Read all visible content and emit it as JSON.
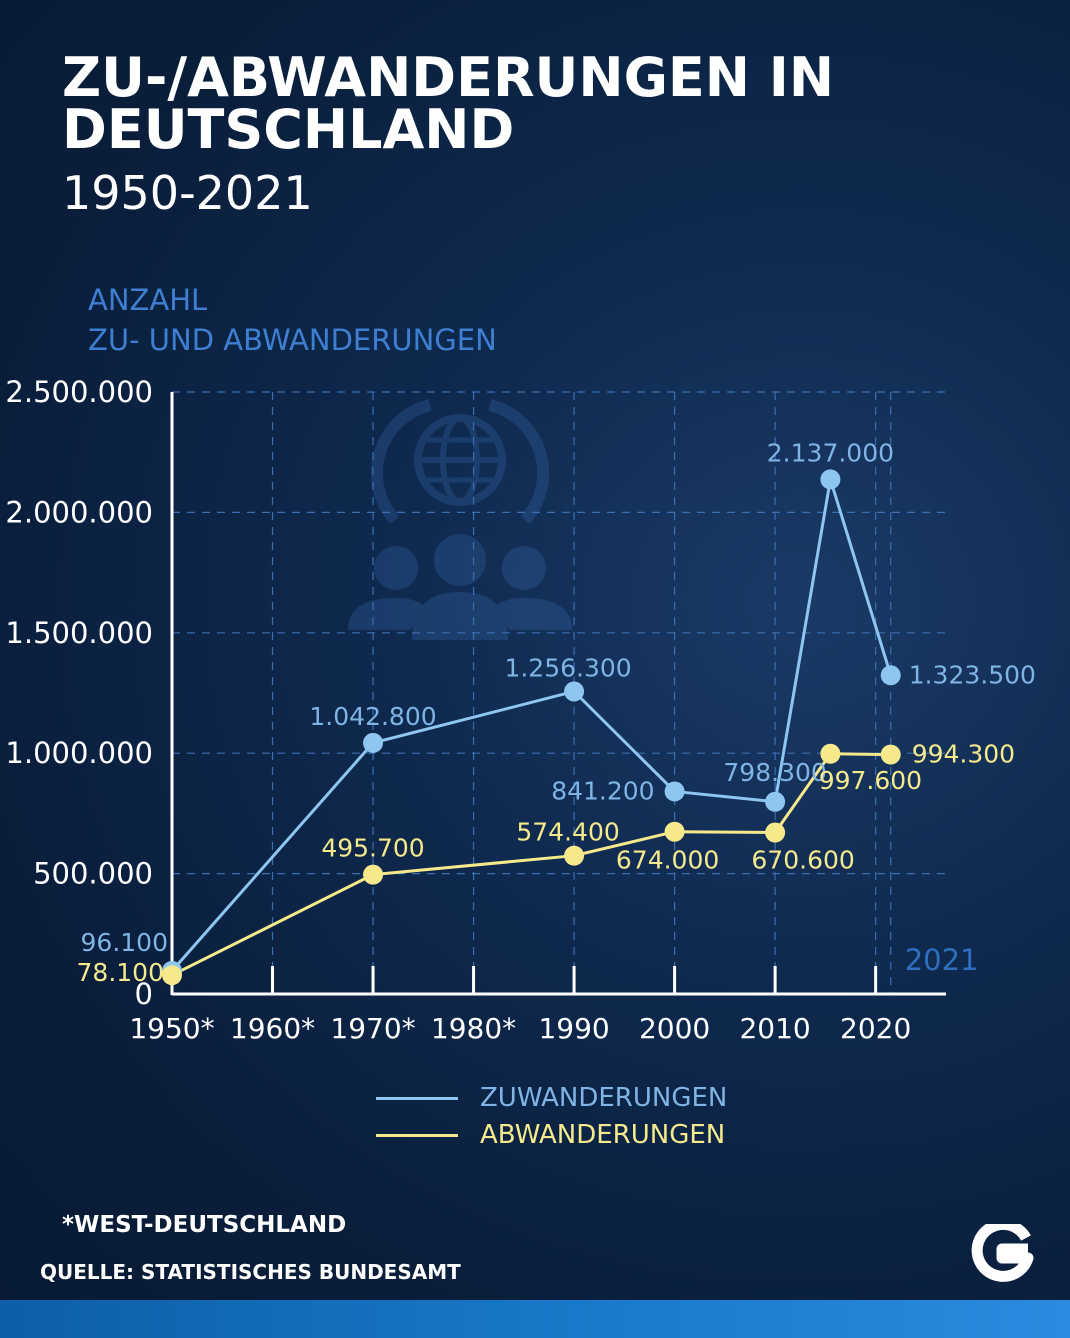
{
  "title": "ZU-/ABWANDERUNGEN IN DEUTSCHLAND",
  "subtitle": "1950-2021",
  "ylabel_line1": "ANZAHL",
  "ylabel_line2": "ZU- UND ABWANDERUNGEN",
  "footnote": "*WEST-DEUTSCHLAND",
  "source": "QUELLE: STATISTISCHES BUNDESAMT",
  "colors": {
    "zuwanderungen": "#8ec6ef",
    "zuwanderungen_label": "#7fb4e4",
    "abwanderungen": "#f5e98c",
    "grid": "#3a6fb0",
    "axis": "#ffffff",
    "annotation": "#2e6fc0"
  },
  "chart_data": {
    "type": "line",
    "x_tick_labels": [
      "1950*",
      "1960*",
      "1970*",
      "1980*",
      "1990",
      "2000",
      "2010",
      "2020"
    ],
    "x_ticks": [
      1950,
      1960,
      1970,
      1980,
      1990,
      2000,
      2010,
      2020
    ],
    "xlim": [
      1950,
      2027
    ],
    "ylim": [
      0,
      2500000
    ],
    "y_ticks": [
      0,
      500000,
      1000000,
      1500000,
      2000000,
      2500000
    ],
    "y_tick_labels": [
      "0",
      "500.000",
      "1.000.000",
      "1.500.000",
      "2.000.000",
      "2.500.000"
    ],
    "grid": true,
    "annotation": "2021",
    "series": [
      {
        "name": "ZUWANDERUNGEN",
        "points": [
          {
            "x": 1950,
            "y": 96100,
            "label": "96.100"
          },
          {
            "x": 1970,
            "y": 1042800,
            "label": "1.042.800"
          },
          {
            "x": 1990,
            "y": 1256300,
            "label": "1.256.300"
          },
          {
            "x": 2000,
            "y": 841200,
            "label": "841.200"
          },
          {
            "x": 2010,
            "y": 798300,
            "label": "798.300"
          },
          {
            "x": 2015.5,
            "y": 2137000,
            "label": "2.137.000"
          },
          {
            "x": 2021.5,
            "y": 1323500,
            "label": "1.323.500"
          }
        ]
      },
      {
        "name": "ABWANDERUNGEN",
        "points": [
          {
            "x": 1950,
            "y": 78100,
            "label": "78.100"
          },
          {
            "x": 1970,
            "y": 495700,
            "label": "495.700"
          },
          {
            "x": 1990,
            "y": 574400,
            "label": "574.400"
          },
          {
            "x": 2000,
            "y": 674000,
            "label": "674.000"
          },
          {
            "x": 2010,
            "y": 670600,
            "label": "670.600"
          },
          {
            "x": 2015.5,
            "y": 997600,
            "label": "997.600"
          },
          {
            "x": 2021.5,
            "y": 994300,
            "label": "994.300"
          }
        ]
      }
    ]
  }
}
